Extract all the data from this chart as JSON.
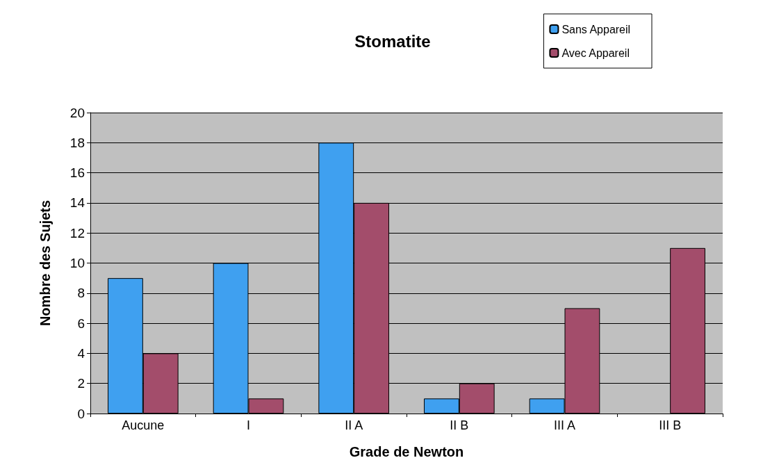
{
  "chart_data": {
    "type": "bar",
    "title": "Stomatite",
    "xlabel": "Grade de Newton",
    "ylabel": "Nombre des Sujets",
    "categories": [
      "Aucune",
      "I",
      "II A",
      "II B",
      "III A",
      "III B"
    ],
    "series": [
      {
        "name": "Sans Appareil",
        "color": "#3fa0f0",
        "values": [
          9,
          10,
          18,
          1,
          1,
          null
        ]
      },
      {
        "name": "Avec Appareil",
        "color": "#a34d6b",
        "values": [
          4,
          1,
          14,
          2,
          7,
          11
        ]
      }
    ],
    "ylim": [
      0,
      20
    ],
    "yticks": [
      0,
      2,
      4,
      6,
      8,
      10,
      12,
      14,
      16,
      18,
      20
    ],
    "grid": "y",
    "legend": "top right"
  }
}
